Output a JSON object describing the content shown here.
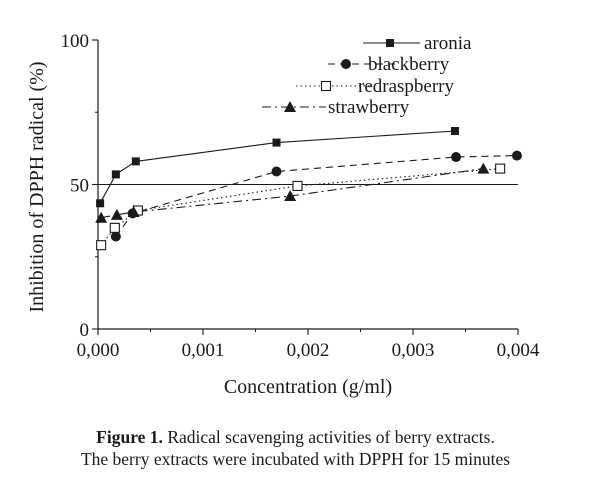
{
  "chart_data": {
    "type": "line",
    "xlabel": "Concentration (g/ml)",
    "ylabel": "Inhibition of DPPH radical (%)",
    "xlim": [
      0,
      0.004
    ],
    "ylim": [
      0,
      100
    ],
    "x_ticks": [
      "0,000",
      "0,001",
      "0,002",
      "0,003",
      "0,004"
    ],
    "y_ticks": [
      "0",
      "50",
      "100"
    ],
    "reference_line": 50,
    "legend_position": "top-right",
    "series": [
      {
        "name": "aronia",
        "marker": "filled-square",
        "dash": "solid",
        "x": [
          2e-05,
          0.00017,
          0.00036,
          0.0017,
          0.0034
        ],
        "y": [
          43.5,
          53.5,
          58,
          64.5,
          68.5
        ]
      },
      {
        "name": "blackberry",
        "marker": "filled-circle",
        "dash": "dashed",
        "x": [
          0.00017,
          0.00033,
          0.0017,
          0.00341,
          0.00399
        ],
        "y": [
          32,
          40,
          54.5,
          59.5,
          60
        ]
      },
      {
        "name": "redraspberry",
        "marker": "open-square",
        "dash": "dotted",
        "x": [
          3e-05,
          0.00016,
          0.00038,
          0.0019,
          0.00383
        ],
        "y": [
          29,
          35,
          41,
          49.5,
          55.5
        ]
      },
      {
        "name": "strawberry",
        "marker": "filled-triangle",
        "dash": "dashdot",
        "x": [
          3e-05,
          0.00018,
          0.00034,
          0.00183,
          0.00367
        ],
        "y": [
          38.5,
          39.5,
          40.5,
          46,
          55.5
        ]
      }
    ]
  },
  "caption": {
    "bold": "Figure 1.",
    "line1": " Radical scavenging activities of berry extracts.",
    "line2": "The berry extracts were incubated with DPPH for 15 minutes"
  }
}
